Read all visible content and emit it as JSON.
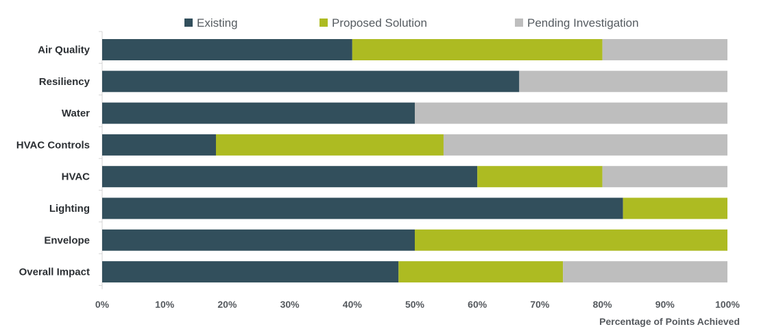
{
  "chart_data": {
    "type": "bar",
    "orientation": "horizontal",
    "stacked": true,
    "categories": [
      "Air Quality",
      "Resiliency",
      "Water",
      "HVAC Controls",
      "HVAC",
      "Lighting",
      "Envelope",
      "Overall Impact"
    ],
    "series": [
      {
        "name": "Existing",
        "color": "#324f5c",
        "values": [
          40,
          66.7,
          50,
          18.2,
          60,
          83.3,
          50,
          47.4
        ]
      },
      {
        "name": "Proposed Solution",
        "color": "#adbb22",
        "values": [
          40,
          0,
          0,
          36.4,
          20,
          16.7,
          50,
          26.3
        ]
      },
      {
        "name": "Pending Investigation",
        "color": "#bebebe",
        "values": [
          20,
          33.3,
          50,
          45.4,
          20,
          0,
          0,
          26.3
        ]
      }
    ],
    "xlim": [
      0,
      100
    ],
    "xticks": [
      "0%",
      "10%",
      "20%",
      "30%",
      "40%",
      "50%",
      "60%",
      "70%",
      "80%",
      "90%",
      "100%"
    ],
    "xlabel": "Percentage of Points Achieved",
    "ylabel": "",
    "title": "",
    "legend_position": "top-center",
    "grid": false
  }
}
